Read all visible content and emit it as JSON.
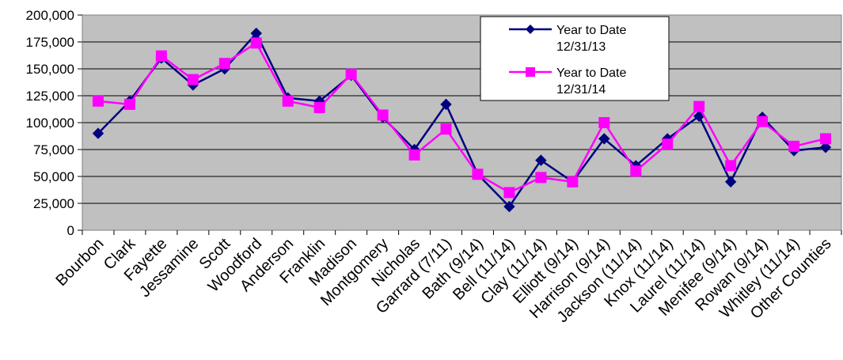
{
  "chart_data": {
    "type": "line",
    "categories": [
      "Bourbon",
      "Clark",
      "Fayette",
      "Jessamine",
      "Scott",
      "Woodford",
      "Anderson",
      "Franklin",
      "Madison",
      "Montgomery",
      "Nicholas",
      "Garrard (7/11)",
      "Bath (9/14)",
      "Bell (11/14)",
      "Clay (11/14)",
      "Elliott (9/14)",
      "Harrison (9/14)",
      "Jackson (11/14)",
      "Knox (11/14)",
      "Laurel (11/14)",
      "Menifee (9/14)",
      "Rowan (9/14)",
      "Whitley (11/14)",
      "Other Counties"
    ],
    "series": [
      {
        "name": "Year to Date 12/31/13",
        "name_lines": [
          "Year to Date",
          "12/31/13"
        ],
        "color": "#000080",
        "marker": "diamond",
        "values": [
          90000,
          120000,
          160000,
          135000,
          150000,
          183000,
          123000,
          120000,
          144000,
          105000,
          75000,
          117000,
          52000,
          22000,
          65000,
          45000,
          85000,
          60000,
          85000,
          106000,
          45000,
          105000,
          74000,
          77000
        ]
      },
      {
        "name": "Year to Date 12/31/14",
        "name_lines": [
          "Year to Date",
          "12/31/14"
        ],
        "color": "#FF00FF",
        "marker": "square",
        "values": [
          120000,
          117000,
          162000,
          140000,
          155000,
          174000,
          120000,
          114000,
          145000,
          107000,
          70000,
          94000,
          52000,
          35000,
          49000,
          45000,
          100000,
          55000,
          80000,
          115000,
          60000,
          101000,
          78000,
          85000
        ]
      }
    ],
    "ylim": [
      0,
      200000
    ],
    "yticks": [
      0,
      25000,
      50000,
      75000,
      100000,
      125000,
      150000,
      175000,
      200000
    ],
    "ytick_labels": [
      "0",
      "25,000",
      "50,000",
      "75,000",
      "100,000",
      "125,000",
      "150,000",
      "175,000",
      "200,000"
    ],
    "plot_background": "#C0C0C0",
    "gridlines": true,
    "legend_position": "top-right"
  }
}
